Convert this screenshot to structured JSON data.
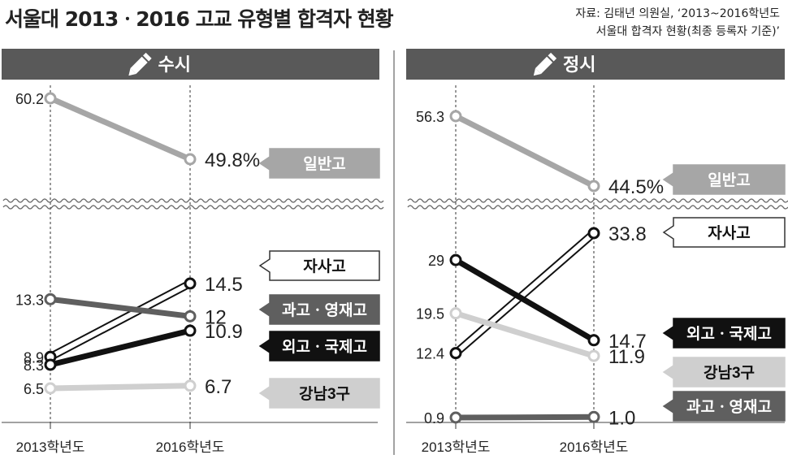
{
  "title": "서울대 2013ㆍ2016 고교 유형별 합격자 현황",
  "source": {
    "line1": "자료: 김태년 의원실, ‘2013~2016학년도",
    "line2": "서울대 합격자 현황(최종 등록자 기준)’"
  },
  "colors": {
    "일반고": "#a6a6a6",
    "자사고": "#ffffff",
    "과고ㆍ영재고": "#5f5f5f",
    "외고ㆍ국제고": "#111111",
    "강남3구": "#cfcfcf",
    "header": "#595959"
  },
  "chart_data": [
    {
      "type": "line",
      "title": "수시",
      "categories": [
        "2013학년도",
        "2016학년도"
      ],
      "unit": "%",
      "series": [
        {
          "name": "일반고",
          "values": [
            60.2,
            49.8
          ],
          "labels": [
            "60.2",
            "49.8%"
          ]
        },
        {
          "name": "자사고",
          "values": [
            8.9,
            14.5
          ],
          "labels": [
            "8.9",
            "14.5"
          ]
        },
        {
          "name": "과고ㆍ영재고",
          "values": [
            13.3,
            12
          ],
          "labels": [
            "13.3",
            "12"
          ]
        },
        {
          "name": "외고ㆍ국제고",
          "values": [
            8.3,
            10.9
          ],
          "labels": [
            "8.3",
            "10.9"
          ]
        },
        {
          "name": "강남3구",
          "values": [
            6.5,
            6.7
          ],
          "labels": [
            "6.5",
            "6.7"
          ]
        }
      ]
    },
    {
      "type": "line",
      "title": "정시",
      "categories": [
        "2013학년도",
        "2016학년도"
      ],
      "unit": "%",
      "series": [
        {
          "name": "일반고",
          "values": [
            56.3,
            44.5
          ],
          "labels": [
            "56.3",
            "44.5%"
          ]
        },
        {
          "name": "자사고",
          "values": [
            12.4,
            33.8
          ],
          "labels": [
            "12.4",
            "33.8"
          ]
        },
        {
          "name": "외고ㆍ국제고",
          "values": [
            29,
            14.7
          ],
          "labels": [
            "29",
            "14.7"
          ]
        },
        {
          "name": "강남3구",
          "values": [
            19.5,
            11.9
          ],
          "labels": [
            "19.5",
            "11.9"
          ]
        },
        {
          "name": "과고ㆍ영재고",
          "values": [
            0.9,
            1.0
          ],
          "labels": [
            "0.9",
            "1.0"
          ]
        }
      ]
    }
  ]
}
